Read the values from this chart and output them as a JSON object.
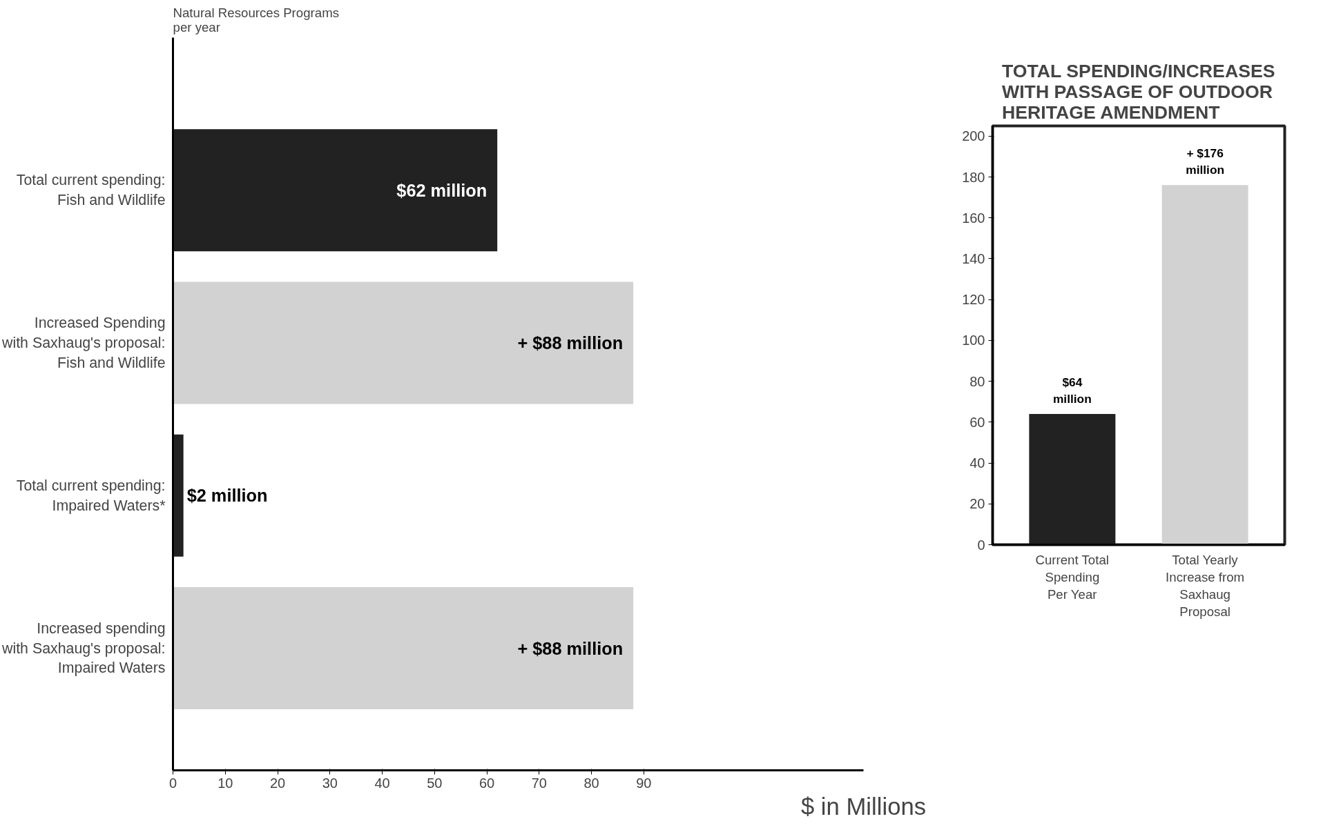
{
  "chart_data": [
    {
      "type": "bar",
      "orientation": "horizontal",
      "ylabel": "Natural Resources Programs\nper year",
      "xlabel": "$ in Millions",
      "categories": [
        "Total current spending:\nFish and Wildlife",
        "Increased Spending\nwith Saxhaug's proposal:\nFish and Wildlife",
        "Total current spending:\nImpaired Waters*",
        "Increased spending\nwith Saxhaug's proposal:\nImpaired Waters"
      ],
      "values": [
        62,
        88,
        2,
        88
      ],
      "colors": [
        "#222222",
        "#d2d2d2",
        "#222222",
        "#d2d2d2"
      ],
      "value_labels": [
        "$62 million",
        "+ $88 million",
        "$2 million",
        "+ $88 million"
      ],
      "xlim": [
        0,
        132
      ],
      "xticks": [
        0,
        10,
        20,
        30,
        40,
        50,
        60,
        70,
        80,
        90
      ],
      "grid": false
    },
    {
      "type": "bar",
      "title": "TOTAL SPENDING/INCREASES\nWITH PASSAGE OF OUTDOOR\nHERITAGE AMENDMENT",
      "categories": [
        "Current Total\nSpending\nPer Year",
        "Total Yearly\nIncrease from\nSaxhaug\nProposal"
      ],
      "values": [
        64,
        176
      ],
      "colors": [
        "#222222",
        "#d2d2d2"
      ],
      "value_labels": [
        "$64 million",
        "+ $176 million"
      ],
      "ylim": [
        0,
        205
      ],
      "yticks": [
        0,
        20,
        40,
        60,
        80,
        100,
        120,
        140,
        160,
        180,
        200
      ],
      "grid": false
    }
  ]
}
